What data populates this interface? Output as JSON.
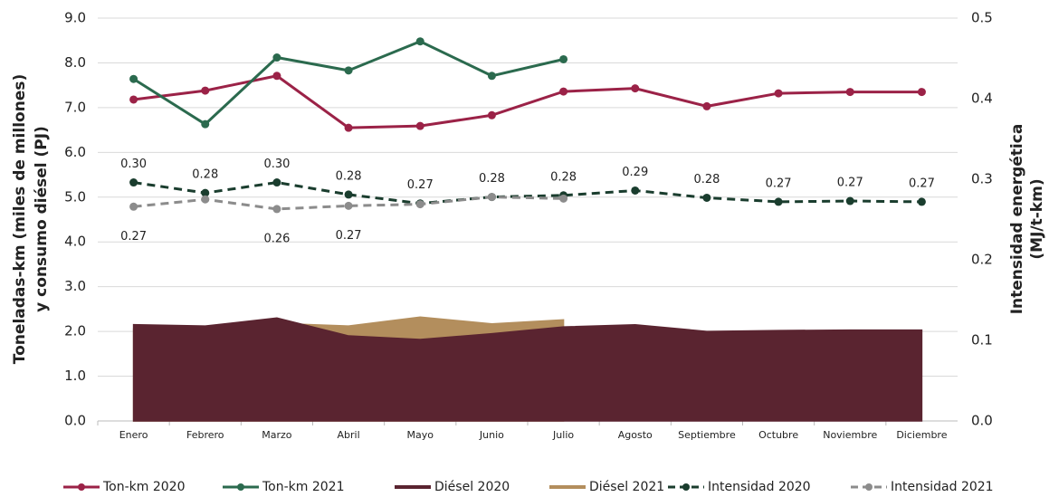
{
  "chart_data": {
    "type": "combo",
    "y_label": "Toneladas-km (miles de millones)",
    "y_label_2": "y consumo diésel (PJ)",
    "y2_label": "Intensidad energética",
    "y2_label_2": "(MJ/t-km)",
    "categories": [
      "Enero",
      "Febrero",
      "Marzo",
      "Abril",
      "Mayo",
      "Junio",
      "Julio",
      "Agosto",
      "Septiembre",
      "Octubre",
      "Noviembre",
      "Diciembre"
    ],
    "ylim": [
      0,
      9
    ],
    "yticks": [
      {
        "value": 0,
        "label": "0.0"
      },
      {
        "value": 1,
        "label": "1.0"
      },
      {
        "value": 2,
        "label": "2.0"
      },
      {
        "value": 3,
        "label": "3.0"
      },
      {
        "value": 4,
        "label": "4.0"
      },
      {
        "value": 5,
        "label": "5.0"
      },
      {
        "value": 6,
        "label": "6.0"
      },
      {
        "value": 7,
        "label": "7.0"
      },
      {
        "value": 8,
        "label": "8.0"
      },
      {
        "value": 9,
        "label": "9.0"
      }
    ],
    "y2lim": [
      0,
      0.5
    ],
    "y2ticks": [
      {
        "value": 0,
        "label": "0.0"
      },
      0.1,
      0.2,
      0.3,
      0.4,
      0.5
    ],
    "grid": true,
    "legend": "bottom",
    "series": [
      {
        "name": "Diésel 2021",
        "kind": "area",
        "color": "#b38e5d",
        "values": [
          2.05,
          1.83,
          2.18,
          2.12,
          2.32,
          2.17,
          2.26,
          null,
          null,
          null,
          null,
          null
        ]
      },
      {
        "name": "Diésel 2020",
        "kind": "area",
        "color": "#5a2430",
        "values": [
          2.15,
          2.12,
          2.3,
          1.9,
          1.82,
          1.95,
          2.1,
          2.15,
          2.0,
          2.02,
          2.03,
          2.03
        ]
      },
      {
        "name": "Ton-km 2020",
        "kind": "line",
        "color": "#9b2247",
        "values": [
          7.18,
          7.38,
          7.71,
          6.55,
          6.59,
          6.83,
          7.36,
          7.43,
          7.03,
          7.32,
          7.35,
          7.35
        ]
      },
      {
        "name": "Ton-km 2021",
        "kind": "line",
        "color": "#2b6a4e",
        "values": [
          7.64,
          6.63,
          8.12,
          7.83,
          8.48,
          7.71,
          8.08,
          null,
          null,
          null,
          null,
          null
        ]
      },
      {
        "name": "Intensidad 2020",
        "kind": "line",
        "dash": true,
        "axis": "y2",
        "label_pos": "above",
        "color": "#1a3d2e",
        "values": [
          0.296,
          0.283,
          0.296,
          0.281,
          0.27,
          0.278,
          0.28,
          0.286,
          0.277,
          0.272,
          0.273,
          0.272
        ],
        "value_labels": [
          "0.30",
          "0.28",
          "0.30",
          "0.28",
          "0.27",
          "0.28",
          "0.28",
          "0.29",
          "0.28",
          "0.27",
          "0.27",
          "0.27"
        ]
      },
      {
        "name": "Intensidad 2021",
        "kind": "line",
        "dash": true,
        "axis": "y2",
        "label_pos": "below",
        "color": "#8c8c8c",
        "values": [
          0.266,
          0.275,
          0.263,
          0.267,
          0.269,
          0.278,
          0.276,
          null,
          null,
          null,
          null,
          null
        ],
        "value_labels": [
          "0.27",
          null,
          "0.26",
          "0.27",
          null,
          null,
          null,
          null,
          null,
          null,
          null,
          null
        ]
      }
    ]
  }
}
